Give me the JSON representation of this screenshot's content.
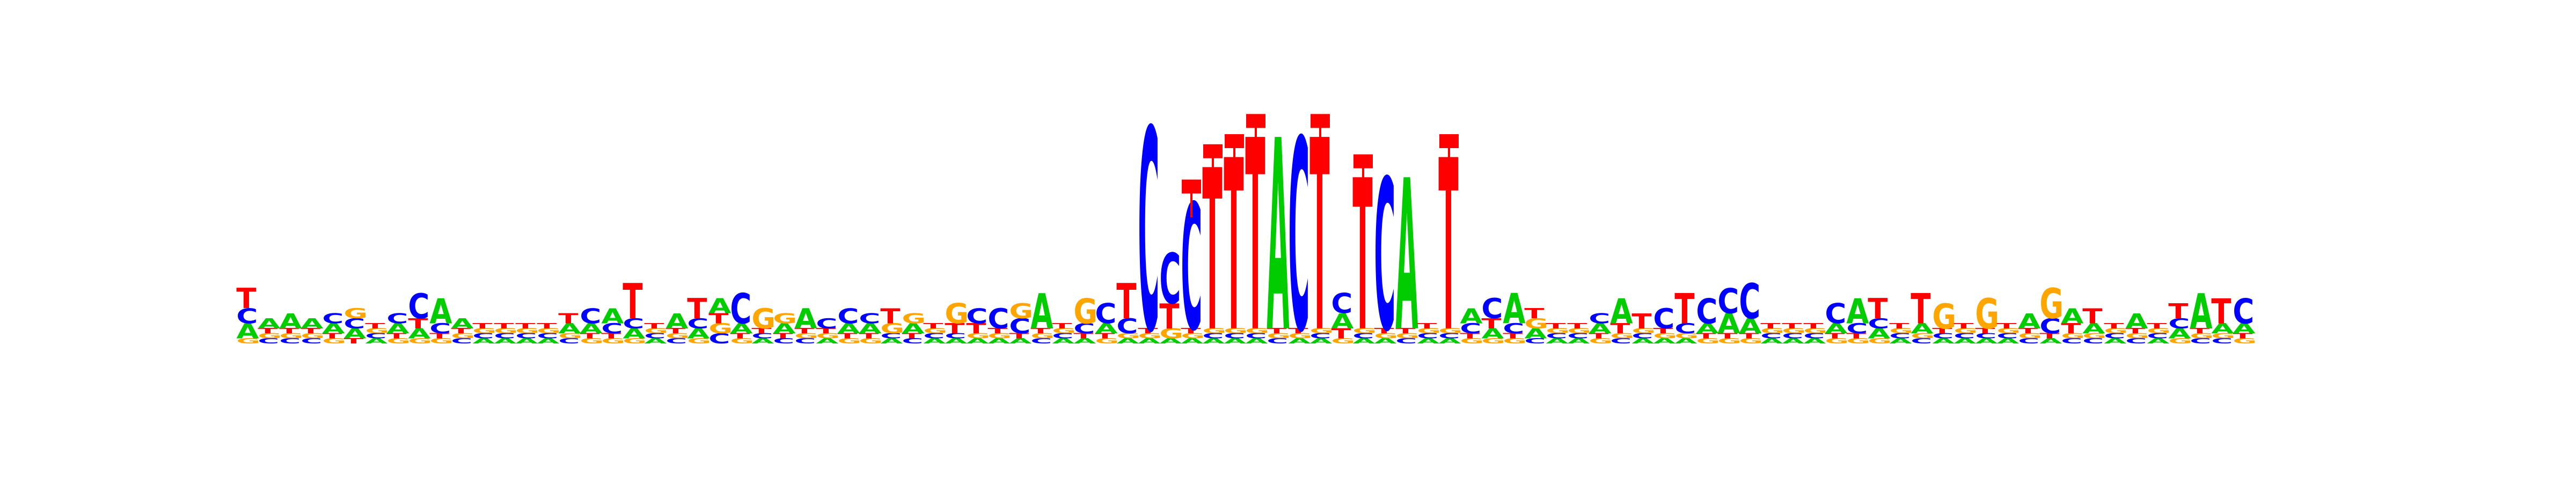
{
  "logo": {
    "alphabet": [
      "A",
      "C",
      "G",
      "T"
    ],
    "colors": {
      "A": "#00cc00",
      "C": "#0000ff",
      "G": "#ffa500",
      "T": "#ff0000",
      "error_bar": "#ff0000"
    },
    "positions": [
      {
        "A": 0.03,
        "C": 0.03,
        "G": 0.01,
        "T": 0.04
      },
      {
        "A": 0.02,
        "C": 0.01,
        "G": 0.01,
        "T": 0.01
      },
      {
        "A": 0.03,
        "C": 0.01,
        "G": 0.01,
        "T": 0.01
      },
      {
        "A": 0.02,
        "C": 0.01,
        "G": 0.01,
        "T": 0.01
      },
      {
        "A": 0.02,
        "C": 0.02,
        "G": 0.01,
        "T": 0.01
      },
      {
        "A": 0.02,
        "C": 0.02,
        "G": 0.02,
        "T": 0.01
      },
      {
        "A": 0.01,
        "C": 0.01,
        "G": 0.01,
        "T": 0.01
      },
      {
        "A": 0.02,
        "C": 0.02,
        "G": 0.01,
        "T": 0.01
      },
      {
        "A": 0.02,
        "C": 0.05,
        "G": 0.01,
        "T": 0.02
      },
      {
        "A": 0.05,
        "C": 0.02,
        "G": 0.01,
        "T": 0.01
      },
      {
        "A": 0.02,
        "C": 0.01,
        "G": 0.01,
        "T": 0.01
      },
      {
        "A": 0.01,
        "C": 0.01,
        "G": 0.01,
        "T": 0.01
      },
      {
        "A": 0.01,
        "C": 0.01,
        "G": 0.01,
        "T": 0.01
      },
      {
        "A": 0.01,
        "C": 0.01,
        "G": 0.01,
        "T": 0.01
      },
      {
        "A": 0.01,
        "C": 0.01,
        "G": 0.01,
        "T": 0.01
      },
      {
        "A": 0.02,
        "C": 0.01,
        "G": 0.01,
        "T": 0.02
      },
      {
        "A": 0.02,
        "C": 0.03,
        "G": 0.01,
        "T": 0.01
      },
      {
        "A": 0.03,
        "C": 0.02,
        "G": 0.01,
        "T": 0.01
      },
      {
        "A": 0.02,
        "C": 0.02,
        "G": 0.01,
        "T": 0.07
      },
      {
        "A": 0.01,
        "C": 0.01,
        "G": 0.01,
        "T": 0.01
      },
      {
        "A": 0.03,
        "C": 0.01,
        "G": 0.01,
        "T": 0.01
      },
      {
        "A": 0.02,
        "C": 0.02,
        "G": 0.01,
        "T": 0.04
      },
      {
        "A": 0.03,
        "C": 0.02,
        "G": 0.02,
        "T": 0.02
      },
      {
        "A": 0.02,
        "C": 0.06,
        "G": 0.01,
        "T": 0.01
      },
      {
        "A": 0.01,
        "C": 0.01,
        "G": 0.04,
        "T": 0.01
      },
      {
        "A": 0.02,
        "C": 0.01,
        "G": 0.02,
        "T": 0.01
      },
      {
        "A": 0.04,
        "C": 0.01,
        "G": 0.01,
        "T": 0.01
      },
      {
        "A": 0.01,
        "C": 0.02,
        "G": 0.01,
        "T": 0.01
      },
      {
        "A": 0.02,
        "C": 0.03,
        "G": 0.01,
        "T": 0.01
      },
      {
        "A": 0.02,
        "C": 0.02,
        "G": 0.01,
        "T": 0.01
      },
      {
        "A": 0.01,
        "C": 0.01,
        "G": 0.02,
        "T": 0.03
      },
      {
        "A": 0.02,
        "C": 0.01,
        "G": 0.02,
        "T": 0.01
      },
      {
        "A": 0.01,
        "C": 0.01,
        "G": 0.01,
        "T": 0.01
      },
      {
        "A": 0.01,
        "C": 0.01,
        "G": 0.04,
        "T": 0.02
      },
      {
        "A": 0.01,
        "C": 0.03,
        "G": 0.01,
        "T": 0.02
      },
      {
        "A": 0.01,
        "C": 0.04,
        "G": 0.01,
        "T": 0.01
      },
      {
        "A": 0.01,
        "C": 0.03,
        "G": 0.03,
        "T": 0.01
      },
      {
        "A": 0.07,
        "C": 0.01,
        "G": 0.01,
        "T": 0.01
      },
      {
        "A": 0.01,
        "C": 0.01,
        "G": 0.01,
        "T": 0.01
      },
      {
        "A": 0.01,
        "C": 0.02,
        "G": 0.05,
        "T": 0.01
      },
      {
        "A": 0.02,
        "C": 0.04,
        "G": 0.01,
        "T": 0.01
      },
      {
        "A": 0.01,
        "C": 0.03,
        "G": 0.01,
        "T": 0.07
      },
      {
        "A": 0.01,
        "C": 0.4,
        "G": 0.01,
        "T": 0.01
      },
      {
        "A": 0.01,
        "C": 0.1,
        "G": 0.02,
        "T": 0.05
      },
      {
        "A": 0.01,
        "C": 0.25,
        "G": 0.01,
        "T": 0.01
      },
      {
        "A": 0.01,
        "C": 0.01,
        "G": 0.01,
        "T": 0.32
      },
      {
        "A": 0.01,
        "C": 0.01,
        "G": 0.01,
        "T": 0.34
      },
      {
        "A": 0.01,
        "C": 0.01,
        "G": 0.01,
        "T": 0.38
      },
      {
        "A": 0.38,
        "C": 0.01,
        "G": 0.01,
        "T": 0.01
      },
      {
        "A": 0.01,
        "C": 0.38,
        "G": 0.01,
        "T": 0.01
      },
      {
        "A": 0.01,
        "C": 0.01,
        "G": 0.01,
        "T": 0.38
      },
      {
        "A": 0.03,
        "C": 0.04,
        "G": 0.01,
        "T": 0.02
      },
      {
        "A": 0.01,
        "C": 0.01,
        "G": 0.01,
        "T": 0.3
      },
      {
        "A": 0.01,
        "C": 0.3,
        "G": 0.01,
        "T": 0.01
      },
      {
        "A": 0.3,
        "C": 0.01,
        "G": 0.01,
        "T": 0.01
      },
      {
        "A": 0.01,
        "C": 0.01,
        "G": 0.01,
        "T": 0.01
      },
      {
        "A": 0.01,
        "C": 0.01,
        "G": 0.01,
        "T": 0.34
      },
      {
        "A": 0.03,
        "C": 0.02,
        "G": 0.01,
        "T": 0.01
      },
      {
        "A": 0.02,
        "C": 0.04,
        "G": 0.01,
        "T": 0.02
      },
      {
        "A": 0.06,
        "C": 0.02,
        "G": 0.01,
        "T": 0.01
      },
      {
        "A": 0.02,
        "C": 0.01,
        "G": 0.02,
        "T": 0.02
      },
      {
        "A": 0.01,
        "C": 0.01,
        "G": 0.01,
        "T": 0.01
      },
      {
        "A": 0.01,
        "C": 0.01,
        "G": 0.01,
        "T": 0.01
      },
      {
        "A": 0.02,
        "C": 0.02,
        "G": 0.01,
        "T": 0.01
      },
      {
        "A": 0.05,
        "C": 0.01,
        "G": 0.01,
        "T": 0.02
      },
      {
        "A": 0.01,
        "C": 0.01,
        "G": 0.01,
        "T": 0.03
      },
      {
        "A": 0.01,
        "C": 0.04,
        "G": 0.01,
        "T": 0.01
      },
      {
        "A": 0.01,
        "C": 0.02,
        "G": 0.01,
        "T": 0.06
      },
      {
        "A": 0.02,
        "C": 0.05,
        "G": 0.01,
        "T": 0.01
      },
      {
        "A": 0.04,
        "C": 0.05,
        "G": 0.01,
        "T": 0.01
      },
      {
        "A": 0.03,
        "C": 0.07,
        "G": 0.01,
        "T": 0.01
      },
      {
        "A": 0.01,
        "C": 0.01,
        "G": 0.01,
        "T": 0.01
      },
      {
        "A": 0.01,
        "C": 0.01,
        "G": 0.01,
        "T": 0.01
      },
      {
        "A": 0.01,
        "C": 0.01,
        "G": 0.01,
        "T": 0.01
      },
      {
        "A": 0.02,
        "C": 0.04,
        "G": 0.01,
        "T": 0.01
      },
      {
        "A": 0.05,
        "C": 0.02,
        "G": 0.01,
        "T": 0.01
      },
      {
        "A": 0.02,
        "C": 0.02,
        "G": 0.01,
        "T": 0.04
      },
      {
        "A": 0.01,
        "C": 0.01,
        "G": 0.01,
        "T": 0.01
      },
      {
        "A": 0.02,
        "C": 0.01,
        "G": 0.01,
        "T": 0.06
      },
      {
        "A": 0.01,
        "C": 0.01,
        "G": 0.05,
        "T": 0.01
      },
      {
        "A": 0.01,
        "C": 0.01,
        "G": 0.01,
        "T": 0.01
      },
      {
        "A": 0.01,
        "C": 0.01,
        "G": 0.06,
        "T": 0.01
      },
      {
        "A": 0.01,
        "C": 0.01,
        "G": 0.01,
        "T": 0.01
      },
      {
        "A": 0.03,
        "C": 0.01,
        "G": 0.01,
        "T": 0.01
      },
      {
        "A": 0.01,
        "C": 0.03,
        "G": 0.06,
        "T": 0.01
      },
      {
        "A": 0.03,
        "C": 0.01,
        "G": 0.01,
        "T": 0.02
      },
      {
        "A": 0.02,
        "C": 0.01,
        "G": 0.01,
        "T": 0.03
      },
      {
        "A": 0.01,
        "C": 0.01,
        "G": 0.01,
        "T": 0.01
      },
      {
        "A": 0.03,
        "C": 0.01,
        "G": 0.01,
        "T": 0.01
      },
      {
        "A": 0.01,
        "C": 0.01,
        "G": 0.01,
        "T": 0.01
      },
      {
        "A": 0.02,
        "C": 0.02,
        "G": 0.01,
        "T": 0.03
      },
      {
        "A": 0.07,
        "C": 0.01,
        "G": 0.01,
        "T": 0.01
      },
      {
        "A": 0.02,
        "C": 0.01,
        "G": 0.01,
        "T": 0.05
      },
      {
        "A": 0.02,
        "C": 0.05,
        "G": 0.01,
        "T": 0.01
      }
    ],
    "error_bars": {
      "44": 0.03,
      "45": 0.03,
      "46": 0.03,
      "47": 0.03,
      "50": 0.03,
      "52": 0.03,
      "56": 0.03
    }
  }
}
